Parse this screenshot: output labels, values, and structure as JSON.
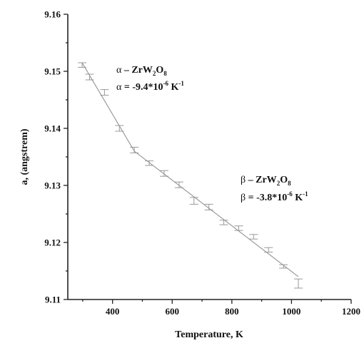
{
  "chart_data": {
    "type": "scatter",
    "title": "",
    "xlabel": "Temperature, K",
    "ylabel": "a, (angstrem)",
    "xlim": [
      250,
      1200
    ],
    "ylim": [
      9.11,
      9.16
    ],
    "xticks": [
      400,
      600,
      800,
      1000,
      1200
    ],
    "xtick_labels": [
      "400",
      "600",
      "800",
      "1000",
      "1200"
    ],
    "yticks": [
      9.11,
      9.12,
      9.13,
      9.14,
      9.15,
      9.16
    ],
    "ytick_labels": [
      "9.11",
      "9.12",
      "9.13",
      "9.14",
      "9.15",
      "9.16"
    ],
    "grid": false,
    "points": [
      {
        "x": 298,
        "y": 9.1511,
        "err": 0.0004
      },
      {
        "x": 323,
        "y": 9.149,
        "err": 0.0005
      },
      {
        "x": 373,
        "y": 9.1463,
        "err": 0.0005
      },
      {
        "x": 423,
        "y": 9.14,
        "err": 0.0005
      },
      {
        "x": 473,
        "y": 9.1362,
        "err": 0.0005
      },
      {
        "x": 523,
        "y": 9.1339,
        "err": 0.0004
      },
      {
        "x": 573,
        "y": 9.1321,
        "err": 0.0005
      },
      {
        "x": 623,
        "y": 9.1301,
        "err": 0.0005
      },
      {
        "x": 673,
        "y": 9.1273,
        "err": 0.0006
      },
      {
        "x": 723,
        "y": 9.1262,
        "err": 0.0005
      },
      {
        "x": 773,
        "y": 9.1235,
        "err": 0.0004
      },
      {
        "x": 823,
        "y": 9.1225,
        "err": 0.0004
      },
      {
        "x": 873,
        "y": 9.121,
        "err": 0.0004
      },
      {
        "x": 923,
        "y": 9.1187,
        "err": 0.0004
      },
      {
        "x": 973,
        "y": 9.1158,
        "err": 0.0003
      },
      {
        "x": 1023,
        "y": 9.1128,
        "err": 0.0008
      }
    ],
    "fit_lines": [
      {
        "phase": "alpha",
        "x": [
          298,
          473
        ],
        "y": [
          9.1515,
          9.136
        ]
      },
      {
        "phase": "beta",
        "x": [
          473,
          1023
        ],
        "y": [
          9.136,
          9.114
        ]
      }
    ],
    "annotations": {
      "alpha": {
        "line1_greek": "α",
        "line1_dash": " – ",
        "line1_formula": "ZrW",
        "line1_sub1": "2",
        "line1_mid": "O",
        "line1_sub2": "8",
        "line2_greek": "α",
        "line2_eq": " = -9.4*10",
        "line2_exp": "-6",
        "line2_unit": " K",
        "line2_unit_exp": "-1"
      },
      "beta": {
        "line1_greek": "β",
        "line1_dash": " – ",
        "line1_formula": "ZrW",
        "line1_sub1": "2",
        "line1_mid": "O",
        "line1_sub2": "8",
        "line2_greek": "β",
        "line2_eq": " = -3.8*10",
        "line2_exp": "-6",
        "line2_unit": " K",
        "line2_unit_exp": "-1"
      }
    }
  }
}
